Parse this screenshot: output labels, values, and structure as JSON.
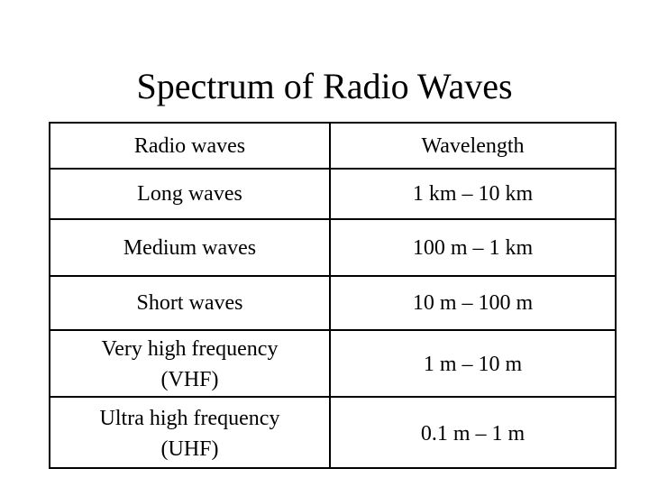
{
  "slide": {
    "title": "Spectrum of Radio Waves"
  },
  "table": {
    "headers": [
      "Radio waves",
      "Wavelength"
    ],
    "rows": [
      {
        "type": "Long waves",
        "wavelength": "1 km – 10 km"
      },
      {
        "type": "Medium waves",
        "wavelength": "100 m – 1 km"
      },
      {
        "type": "Short waves",
        "wavelength": "10 m – 100 m"
      },
      {
        "type_line1": "Very high frequency",
        "type_line2": "(VHF)",
        "wavelength": "1 m – 10 m"
      },
      {
        "type_line1": "Ultra high frequency",
        "type_line2": "(UHF)",
        "wavelength": "0.1 m – 1 m"
      }
    ]
  }
}
